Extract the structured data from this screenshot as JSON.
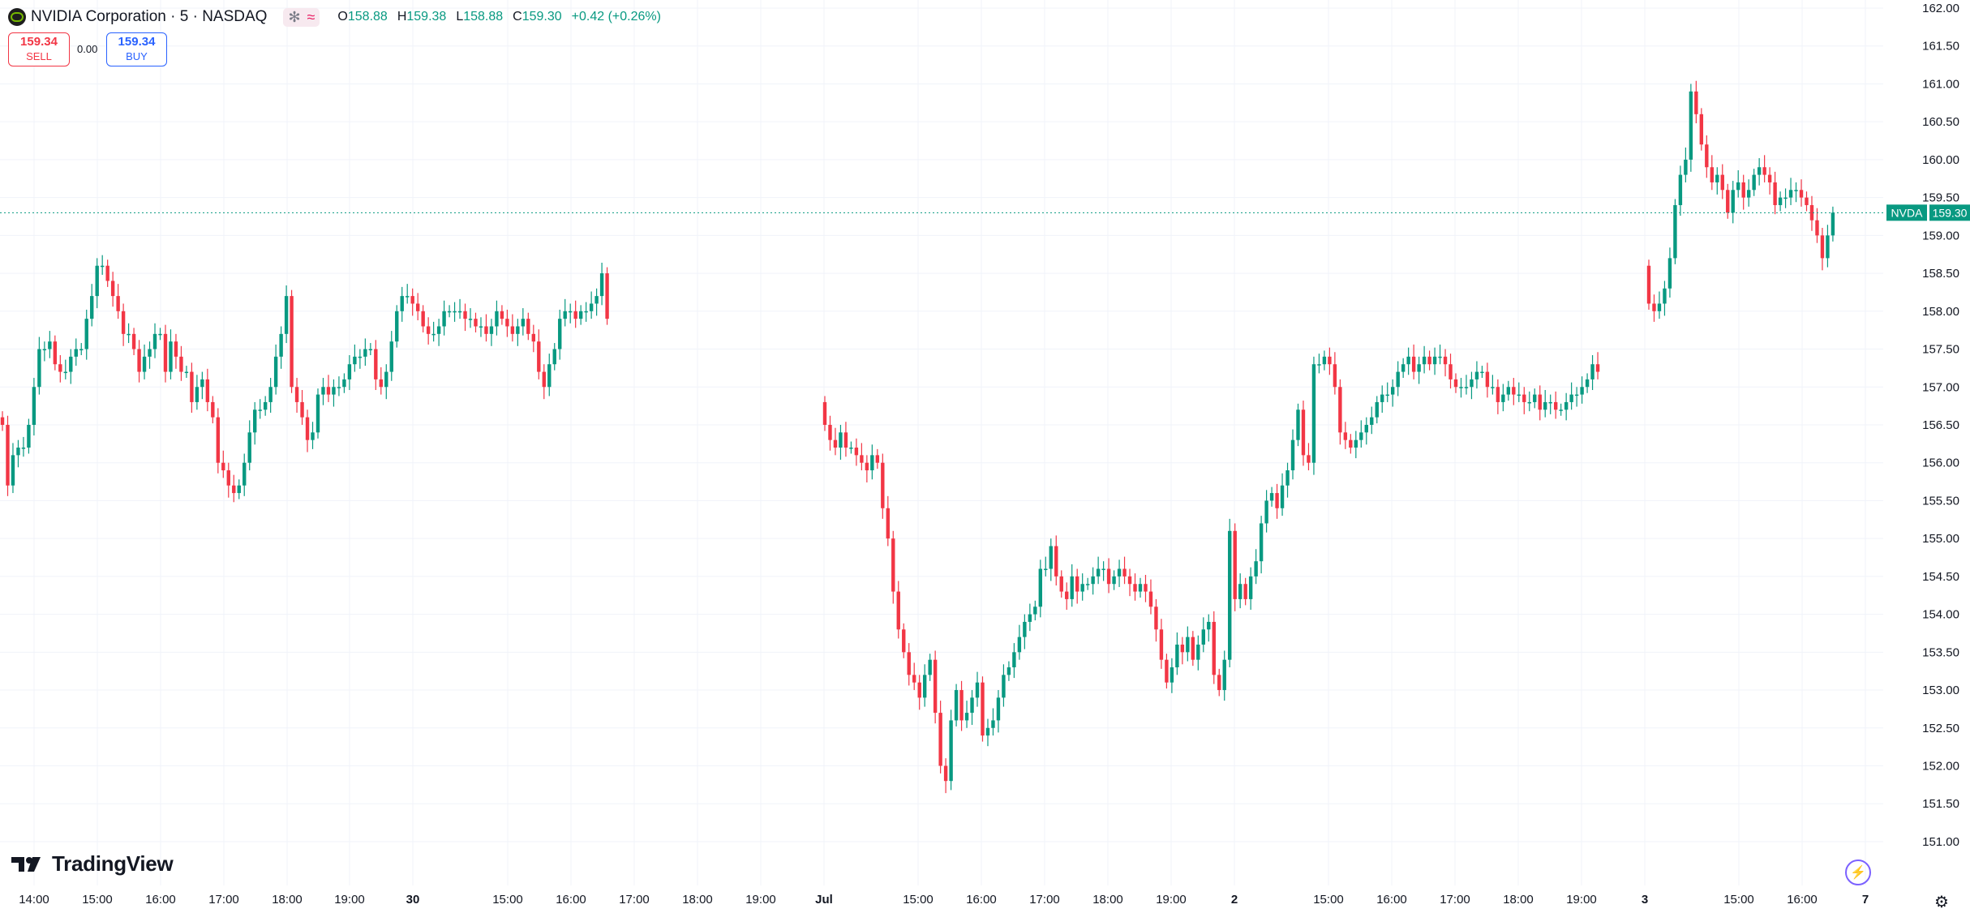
{
  "header": {
    "symbol_title": "NVIDIA Corporation · 5 · NASDAQ",
    "pill_icons": [
      "asterisk-icon",
      "wave-icon"
    ],
    "ohlc": {
      "o_label": "O",
      "o_value": "158.88",
      "h_label": "H",
      "h_value": "159.38",
      "l_label": "L",
      "l_value": "158.88",
      "c_label": "C",
      "c_value": "159.30",
      "change": "+0.42 (+0.26%)"
    }
  },
  "trade": {
    "sell_price": "159.34",
    "sell_label": "SELL",
    "spread": "0.00",
    "buy_price": "159.34",
    "buy_label": "BUY"
  },
  "branding": {
    "logo_text": "TradingView"
  },
  "colors": {
    "up": "#089981",
    "down": "#f23645",
    "grid": "#f0f3fa",
    "price_line": "#089981"
  },
  "chart_data": {
    "type": "candlestick",
    "symbol": "NVDA",
    "interval": "5",
    "exchange": "NASDAQ",
    "last_price": "159.30",
    "price_tag": {
      "label": "NVDA",
      "value": "159.30"
    },
    "ylim": [
      150.8,
      162.2
    ],
    "y_ticks": [
      "151.00",
      "151.50",
      "152.00",
      "152.50",
      "153.00",
      "153.50",
      "154.00",
      "154.50",
      "155.00",
      "155.50",
      "156.00",
      "156.50",
      "157.00",
      "157.50",
      "158.00",
      "158.50",
      "159.00",
      "159.50",
      "160.00",
      "160.50",
      "161.00",
      "161.50",
      "162.00"
    ],
    "x_ticks": [
      "14:00",
      "15:00",
      "16:00",
      "17:00",
      "18:00",
      "19:00",
      "30",
      "15:00",
      "16:00",
      "17:00",
      "18:00",
      "19:00",
      "Jul",
      "15:00",
      "16:00",
      "17:00",
      "18:00",
      "19:00",
      "2",
      "15:00",
      "16:00",
      "17:00",
      "18:00",
      "19:00",
      "3",
      "15:00",
      "16:00",
      "7"
    ],
    "grid": true,
    "sessions": [
      {
        "start_tick": "13:50",
        "close": [
          156.5,
          155.7,
          156.1,
          156.2,
          156.2,
          156.5,
          157.0,
          157.5,
          157.5,
          157.6,
          157.3,
          157.2,
          157.2,
          157.4,
          157.5,
          157.5,
          157.9,
          158.2,
          158.6,
          158.6,
          158.4,
          158.2,
          158.0,
          157.7,
          157.7,
          157.5,
          157.2,
          157.4,
          157.5,
          157.7,
          157.7,
          157.2,
          157.6,
          157.4,
          157.2,
          157.2,
          156.8,
          157.0,
          157.1,
          156.8,
          156.6,
          156.0,
          155.9,
          155.7,
          155.6,
          155.7,
          156.0,
          156.4,
          156.7,
          156.7,
          156.8,
          157.0,
          157.4,
          157.7,
          158.2,
          157.0,
          156.8,
          156.6,
          156.3,
          156.4,
          156.9,
          157.0,
          156.9,
          157.0,
          157.0,
          157.1,
          157.3,
          157.4,
          157.4,
          157.5,
          157.5,
          157.1,
          157.0,
          157.2,
          157.6,
          158.0,
          158.2,
          158.2,
          158.1,
          158.0,
          157.8,
          157.7,
          157.7,
          157.8,
          158.0,
          158.0,
          158.0,
          158.0,
          157.9,
          157.9,
          157.8,
          157.8,
          157.7,
          157.8,
          158.0,
          157.9,
          157.8,
          157.7,
          157.8,
          157.9,
          157.7,
          157.6,
          157.2,
          157.0,
          157.3,
          157.5,
          157.9,
          158.0,
          158.0,
          157.9,
          158.0,
          158.0,
          158.1,
          158.2,
          158.5,
          157.9
        ]
      },
      {
        "start_tick": "13:30",
        "close": [
          156.5,
          156.3,
          156.2,
          156.4,
          156.2,
          156.2,
          156.1,
          156.0,
          155.9,
          156.1,
          156.0,
          155.4,
          155.0,
          154.3,
          153.8,
          153.5,
          153.2,
          153.1,
          152.9,
          153.2,
          153.4,
          152.7,
          152.0,
          151.8,
          152.6,
          153.0,
          152.6,
          152.7,
          152.9,
          153.1,
          152.4,
          152.5,
          152.6,
          152.9,
          153.2,
          153.3,
          153.5,
          153.7,
          153.9,
          154.0,
          154.1,
          154.6,
          154.6,
          154.9,
          154.5,
          154.3,
          154.2,
          154.5,
          154.3,
          154.4,
          154.4,
          154.5,
          154.6,
          154.6,
          154.4,
          154.5,
          154.6,
          154.5,
          154.4,
          154.3,
          154.4,
          154.3,
          154.1,
          153.8,
          153.4,
          153.1,
          153.3,
          153.6,
          153.5,
          153.7,
          153.4,
          153.6,
          153.8,
          153.9,
          153.2,
          153.0,
          153.4,
          155.1,
          154.2,
          154.4,
          154.2,
          154.5,
          154.7,
          155.2,
          155.5,
          155.6,
          155.4,
          155.7,
          155.9,
          156.3,
          156.7,
          156.1,
          156.0,
          157.3,
          157.3,
          157.4,
          157.3,
          157.0,
          156.4,
          156.3,
          156.2,
          156.3,
          156.4,
          156.5,
          156.6,
          156.8,
          156.9,
          156.9,
          157.0,
          157.2,
          157.3,
          157.4,
          157.2,
          157.3,
          157.4,
          157.3,
          157.4,
          157.4,
          157.3,
          157.1,
          157.0,
          157.0,
          157.0,
          157.1,
          157.2,
          157.2,
          157.0,
          157.0,
          156.8,
          156.9,
          157.0,
          156.9,
          156.9,
          156.8,
          156.8,
          156.9,
          156.7,
          156.8,
          156.8,
          156.7,
          156.7,
          156.8,
          156.9,
          156.9,
          157.0,
          157.1,
          157.3,
          157.2
        ]
      },
      {
        "start_tick": "13:30",
        "close": [
          158.1,
          158.0,
          158.1,
          158.3,
          158.7,
          159.4,
          159.8,
          160.0,
          160.9,
          160.6,
          160.2,
          159.9,
          159.7,
          159.8,
          159.6,
          159.3,
          159.6,
          159.7,
          159.5,
          159.6,
          159.8,
          159.9,
          159.8,
          159.7,
          159.4,
          159.5,
          159.5,
          159.6,
          159.6,
          159.5,
          159.4,
          159.2,
          159.0,
          158.7,
          159.0,
          159.3
        ]
      }
    ]
  }
}
